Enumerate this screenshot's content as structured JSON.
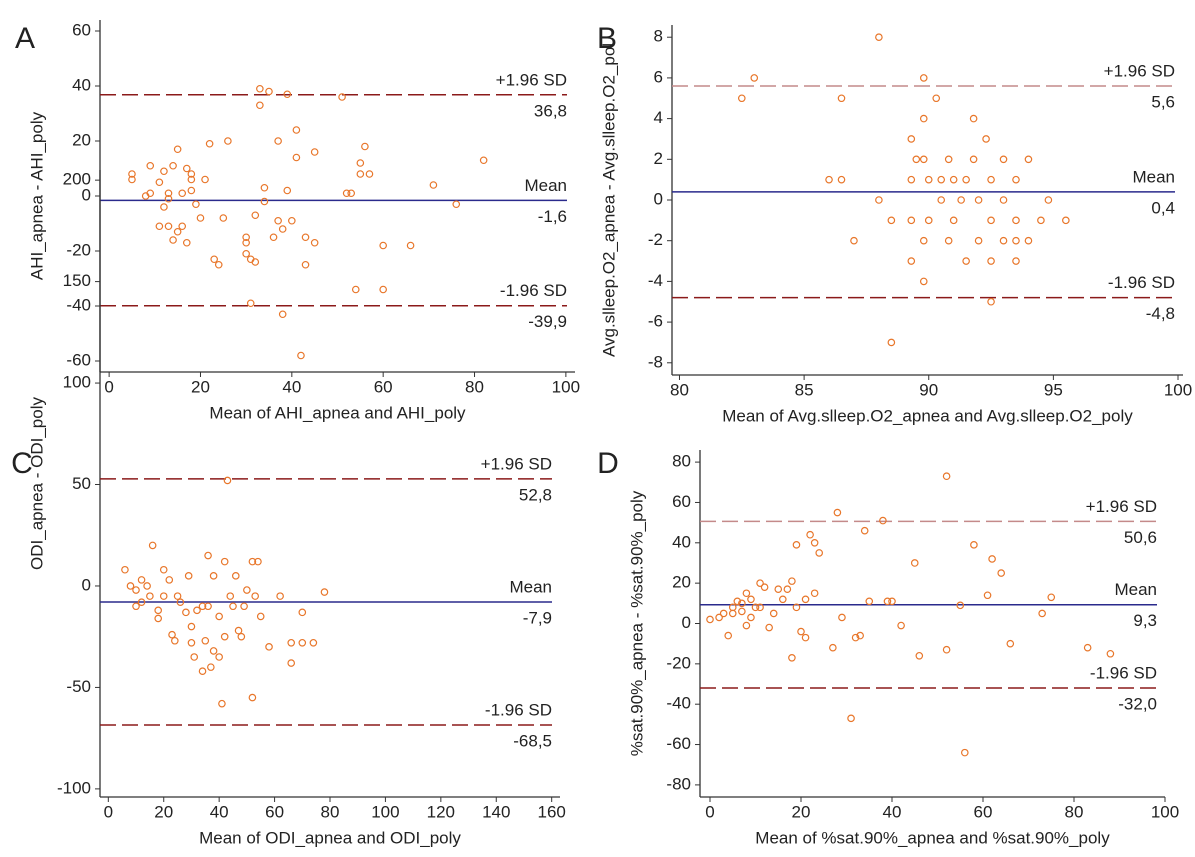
{
  "chart_data": [
    {
      "type": "scatter",
      "panel_label": "A",
      "x_label": "Mean of AHI_apnea and AHI_poly",
      "y_label": "AHI_apnea - AHI_poly",
      "xlim": [
        -2,
        102
      ],
      "ylim": [
        -64,
        64
      ],
      "xticks": [
        0,
        20,
        40,
        60,
        80,
        100
      ],
      "yticks": [
        -60,
        -40,
        -20,
        0,
        20,
        40,
        60
      ],
      "color": "#e8762a",
      "x": [
        5,
        5,
        8,
        9,
        9,
        11,
        11,
        12,
        12,
        13,
        13,
        13,
        14,
        14,
        15,
        15,
        16,
        16,
        17,
        17,
        18,
        18,
        18,
        19,
        20,
        21,
        22,
        23,
        24,
        25,
        26,
        30,
        30,
        30,
        31,
        31,
        32,
        32,
        33,
        33,
        34,
        34,
        35,
        36,
        37,
        37,
        38,
        38,
        39,
        39,
        40,
        41,
        41,
        42,
        43,
        43,
        45,
        45,
        51,
        52,
        53,
        54,
        55,
        55,
        56,
        57,
        60,
        60,
        66,
        71,
        76,
        82
      ],
      "values": [
        8,
        6,
        0,
        11,
        1,
        -11,
        5,
        9,
        -4,
        -11,
        -1,
        1,
        -16,
        11,
        17,
        -13,
        -11,
        1,
        -17,
        10,
        2,
        6,
        8,
        -3,
        -8,
        6,
        19,
        -23,
        -25,
        -8,
        20,
        -17,
        -21,
        -15,
        -39,
        -23,
        -24,
        -7,
        39,
        33,
        -2,
        3,
        38,
        -15,
        -9,
        20,
        -43,
        -12,
        37,
        2,
        -9,
        24,
        14,
        -58,
        -15,
        -25,
        16,
        -17,
        36,
        1,
        1,
        -34,
        12,
        8,
        18,
        8,
        -18,
        -34,
        -18,
        4,
        -3,
        13
      ],
      "reference_lines": [
        {
          "name": "+1.96 SD",
          "value": 36.8,
          "value_label": "36,8",
          "color": "#8b1a1a",
          "dashed": true
        },
        {
          "name": "Mean",
          "value": -1.6,
          "value_label": "-1,6",
          "color": "#2a2a8c",
          "dashed": false
        },
        {
          "name": "-1.96 SD",
          "value": -39.9,
          "value_label": "-39,9",
          "color": "#8b1a1a",
          "dashed": true
        }
      ]
    },
    {
      "type": "scatter",
      "panel_label": "B",
      "x_label": "Mean of Avg.slleep.O2_apnea and Avg.slleep.O2_poly",
      "y_label": "Avg.slleep.O2_apnea - Avg.slleep.O2_pol",
      "xlim": [
        79.7,
        100.2
      ],
      "ylim": [
        -8.6,
        8.6
      ],
      "xticks": [
        80,
        85,
        90,
        95,
        100
      ],
      "yticks": [
        -8,
        -6,
        -4,
        -2,
        0,
        2,
        4,
        6,
        8
      ],
      "color": "#e8762a",
      "x": [
        82.5,
        83,
        86,
        86.5,
        86.5,
        87,
        88,
        88,
        88.5,
        88.5,
        89.3,
        89.3,
        89.3,
        89.3,
        89.5,
        89.8,
        89.8,
        89.8,
        89.8,
        89.8,
        90,
        90,
        90.3,
        90.5,
        90.5,
        90.8,
        90.8,
        91,
        91,
        91.3,
        91.5,
        91.5,
        91.8,
        91.8,
        92,
        92,
        92.3,
        92.5,
        92.5,
        92.5,
        92.5,
        93,
        93,
        93,
        93.5,
        93.5,
        93.5,
        93.5,
        94,
        94,
        94.5,
        94.8,
        95.5
      ],
      "values": [
        5,
        6,
        1,
        5,
        1,
        -2,
        8,
        0,
        -7,
        -1,
        3,
        1,
        -1,
        -3,
        2,
        6,
        4,
        2,
        -4,
        -2,
        1,
        -1,
        5,
        1,
        0,
        2,
        -2,
        -1,
        1,
        0,
        -3,
        1,
        2,
        4,
        -2,
        0,
        3,
        -5,
        1,
        -3,
        -1,
        2,
        -2,
        0,
        -3,
        1,
        -1,
        -2,
        2,
        -2,
        -1,
        0,
        -1
      ],
      "reference_lines": [
        {
          "name": "+1.96 SD",
          "value": 5.6,
          "value_label": "5,6",
          "color": "#c48a8a",
          "dashed": true
        },
        {
          "name": "Mean",
          "value": 0.4,
          "value_label": "0,4",
          "color": "#2a2a8c",
          "dashed": false
        },
        {
          "name": "-1.96 SD",
          "value": -4.8,
          "value_label": "-4,8",
          "color": "#8b1a1a",
          "dashed": true
        }
      ]
    },
    {
      "type": "scatter",
      "panel_label": "C",
      "x_label": "Mean of ODI_apnea and ODI_poly",
      "y_label": "ODI_apnea - ODI_poly",
      "xlim": [
        -3,
        163
      ],
      "ylim": [
        -104,
        205
      ],
      "xticks": [
        0,
        20,
        40,
        60,
        80,
        100,
        120,
        140,
        160
      ],
      "yticks": [
        -100,
        -50,
        0,
        50,
        100,
        150,
        200
      ],
      "color": "#e8762a",
      "x": [
        6,
        8,
        10,
        10,
        12,
        12,
        14,
        15,
        16,
        18,
        18,
        20,
        20,
        22,
        23,
        24,
        25,
        26,
        28,
        29,
        30,
        30,
        31,
        32,
        34,
        34,
        35,
        36,
        36,
        37,
        38,
        38,
        40,
        40,
        41,
        42,
        42,
        43,
        44,
        45,
        46,
        47,
        48,
        49,
        50,
        52,
        52,
        53,
        54,
        55,
        58,
        62,
        66,
        66,
        70,
        70,
        74,
        78
      ],
      "values": [
        8,
        0,
        -2,
        -10,
        3,
        -8,
        0,
        -5,
        20,
        -16,
        -12,
        8,
        -5,
        3,
        -24,
        -27,
        -5,
        -8,
        -13,
        5,
        -20,
        -28,
        -35,
        -12,
        -42,
        -10,
        -27,
        15,
        -10,
        -40,
        -32,
        5,
        -35,
        -15,
        -58,
        12,
        -25,
        52,
        -5,
        -10,
        5,
        -22,
        -25,
        -10,
        -2,
        12,
        -55,
        -5,
        12,
        -15,
        -30,
        -5,
        -38,
        -28,
        -13,
        -28,
        -28,
        -3
      ],
      "reference_lines": [
        {
          "name": "+1.96 SD",
          "value": 52.8,
          "value_label": "52,8",
          "color": "#8b1a1a",
          "dashed": true
        },
        {
          "name": "Mean",
          "value": -7.9,
          "value_label": "-7,9",
          "color": "#2a2a8c",
          "dashed": false
        },
        {
          "name": "-1.96 SD",
          "value": -68.5,
          "value_label": "-68,5",
          "color": "#8b1a1a",
          "dashed": true
        }
      ]
    },
    {
      "type": "scatter",
      "panel_label": "D",
      "x_label": "Mean of %sat.90%_apnea and %sat.90%_poly",
      "y_label": "%sat.90%_apnea - %sat.90%_poly",
      "xlim": [
        -2.2,
        100
      ],
      "ylim": [
        -86,
        86
      ],
      "xticks": [
        0,
        20,
        40,
        60,
        80,
        100
      ],
      "yticks": [
        -80,
        -60,
        -40,
        -20,
        0,
        20,
        40,
        60,
        80
      ],
      "color": "#e8762a",
      "x": [
        0,
        2,
        3,
        4,
        5,
        5,
        6,
        7,
        7,
        8,
        8,
        9,
        9,
        10,
        11,
        11,
        12,
        13,
        14,
        15,
        16,
        17,
        18,
        18,
        19,
        19,
        20,
        21,
        21,
        22,
        23,
        23,
        24,
        27,
        28,
        29,
        31,
        32,
        33,
        34,
        35,
        38,
        39,
        40,
        42,
        45,
        46,
        52,
        52,
        55,
        56,
        58,
        61,
        62,
        64,
        66,
        73,
        75,
        83,
        88
      ],
      "values": [
        2,
        3,
        5,
        -6,
        8,
        5,
        11,
        10,
        6,
        -1,
        15,
        12,
        3,
        8,
        20,
        8,
        18,
        -2,
        5,
        17,
        12,
        17,
        21,
        -17,
        39,
        8,
        -4,
        12,
        -7,
        44,
        40,
        15,
        35,
        -12,
        55,
        3,
        -47,
        -7,
        -6,
        46,
        11,
        51,
        11,
        11,
        -1,
        30,
        -16,
        73,
        -13,
        9,
        -64,
        39,
        14,
        32,
        25,
        -10,
        5,
        13,
        -12,
        -15
      ],
      "reference_lines": [
        {
          "name": "+1.96 SD",
          "value": 50.6,
          "value_label": "50,6",
          "color": "#c48a8a",
          "dashed": true
        },
        {
          "name": "Mean",
          "value": 9.3,
          "value_label": "9,3",
          "color": "#2a2a8c",
          "dashed": false
        },
        {
          "name": "-1.96 SD",
          "value": -32.0,
          "value_label": "-32,0",
          "color": "#8b1a1a",
          "dashed": true
        }
      ]
    }
  ]
}
